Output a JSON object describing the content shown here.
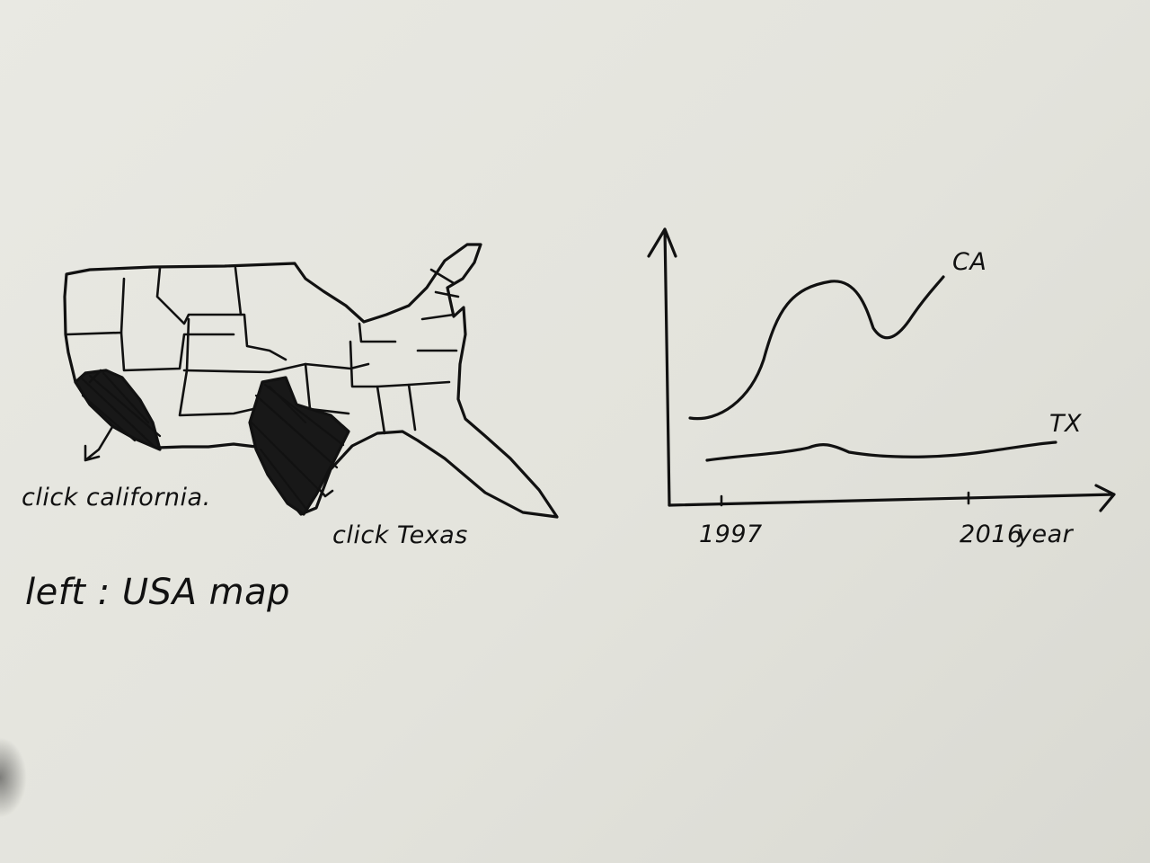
{
  "annotations": {
    "click_california": "click california.",
    "click_texas": "click Texas",
    "left_label": "left : USA map"
  },
  "chart_data": {
    "type": "line",
    "title": "",
    "xlabel": "year",
    "ylabel": "",
    "x_ticks": [
      "1997",
      "2016"
    ],
    "series": [
      {
        "name": "CA",
        "shape": "rises, peaks, dips, then rises again"
      },
      {
        "name": "TX",
        "shape": "nearly flat with a small bump"
      }
    ]
  },
  "map": {
    "highlighted_states": [
      "California",
      "Texas"
    ]
  }
}
